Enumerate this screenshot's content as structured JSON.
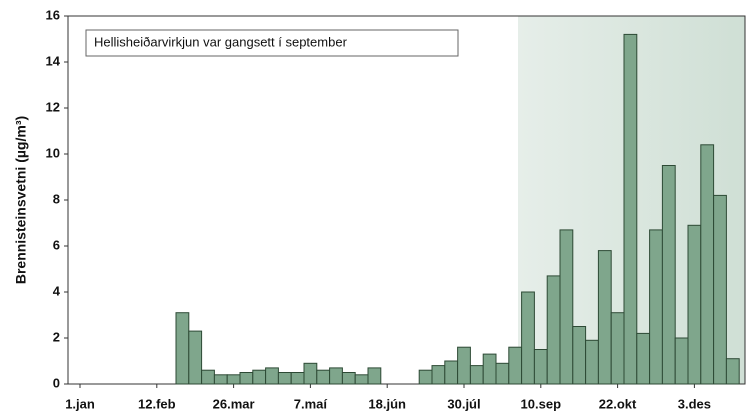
{
  "chart_data": {
    "type": "bar",
    "ylabel": "Brennisteinsvetni (µg/m³)",
    "annotation": "Hellisheiðarvirkjun var gangsett í september",
    "categories": [
      "1.jan",
      null,
      null,
      null,
      null,
      null,
      "12.feb",
      null,
      null,
      null,
      null,
      null,
      "26.mar",
      null,
      null,
      null,
      null,
      null,
      "7.maí",
      null,
      null,
      null,
      null,
      null,
      "18.jún",
      null,
      null,
      null,
      null,
      null,
      "30.júl",
      null,
      null,
      null,
      null,
      null,
      "10.sep",
      null,
      null,
      null,
      null,
      null,
      "22.okt",
      null,
      null,
      null,
      null,
      null,
      "3.des",
      null,
      null,
      null
    ],
    "values": [
      null,
      null,
      null,
      null,
      null,
      null,
      null,
      null,
      3.1,
      2.3,
      0.6,
      0.4,
      0.4,
      0.5,
      0.6,
      0.7,
      0.5,
      0.5,
      0.9,
      0.6,
      0.7,
      0.5,
      0.4,
      0.7,
      null,
      null,
      null,
      0.6,
      0.8,
      1.0,
      1.6,
      0.8,
      1.3,
      0.9,
      1.6,
      4.0,
      1.5,
      4.7,
      6.7,
      2.5,
      1.9,
      5.8,
      3.1,
      15.2,
      2.2,
      6.7,
      9.5,
      2.0,
      6.9,
      10.4,
      8.2,
      1.1
    ],
    "color": "#7fa68c",
    "ylim": [
      0,
      16
    ],
    "yticks": [
      0,
      2,
      4,
      6,
      8,
      10,
      12,
      14,
      16
    ]
  }
}
